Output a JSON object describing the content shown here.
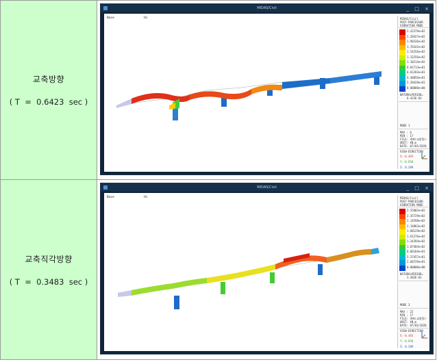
{
  "rows": [
    {
      "mode_label": "교축방향",
      "period_text": "( T  =  0.6423  sec )",
      "window": {
        "title": "MIDAS/Civil",
        "buttons": "_ □ ×",
        "view_labels": [
          "Base",
          "Hi"
        ],
        "legend": {
          "header": [
            "MIDAS/Civil",
            "POST-PROCESSOR",
            "VIBRATION MODE"
          ],
          "values": [
            "2.42379e+02",
            "2.20427e+02",
            "1.98336e+02",
            "1.76342e+02",
            "1.54256e+02",
            "1.32256e+02",
            "1.10214e+02",
            "8.81713e+01",
            "6.61283e+01",
            "4.40856e+01",
            "2.20428e+01",
            "0.00000e+00"
          ],
          "natural_period_label": "NATURALPERIOD=",
          "natural_period_value": "6.423E-01",
          "mode": "MODE 1",
          "max": "MAX : 6",
          "min": "MIN : 17",
          "file": "FILE: 개축(교량정)-",
          "unit": "UNIT: kN,m",
          "date": "DATE: 07/03/2020",
          "view_direction": "VIEW-DIRECTION",
          "coords": [
            "X:-0.483",
            "Y:-0.850",
            "Z: 0.209"
          ]
        }
      }
    },
    {
      "mode_label": "교축직각방향",
      "period_text": "( T  =  0.3483  sec )",
      "window": {
        "title": "MIDAS/Civil",
        "buttons": "_ □ ×",
        "view_labels": [
          "Base",
          "Hi"
        ],
        "legend": {
          "header": [
            "MIDAS/Civil",
            "POST-PROCESSOR",
            "VIBRATION MODE"
          ],
          "values": [
            "2.55802e+02",
            "2.35729e+02",
            "2.14598e+02",
            "2.14863e+02",
            "1.88129e+02",
            "1.61276e+02",
            "1.34394e+02",
            "1.07484e+02",
            "8.06184e+01",
            "5.37457e+01",
            "2.68729e+01",
            "0.00000e+00"
          ],
          "natural_period_label": "NATURALPERIOD=",
          "natural_period_value": "3.483E-01",
          "mode": "MODE 3",
          "max": "MAX : 22",
          "min": "MIN : 17",
          "file": "FILE: 개축(교량정)-",
          "unit": "UNIT: kN,m",
          "date": "DATE: 07/03/2020",
          "view_direction": "VIEW-DIRECTION",
          "coords": [
            "X:-0.483",
            "Y:-0.850",
            "Z: 0.209"
          ]
        }
      }
    }
  ],
  "legend_colors": [
    "#d80000",
    "#ff4400",
    "#ff8800",
    "#ffbb00",
    "#ffee00",
    "#ccee00",
    "#88dd00",
    "#33cc33",
    "#00cc88",
    "#00bbcc",
    "#0099dd",
    "#0044cc"
  ]
}
